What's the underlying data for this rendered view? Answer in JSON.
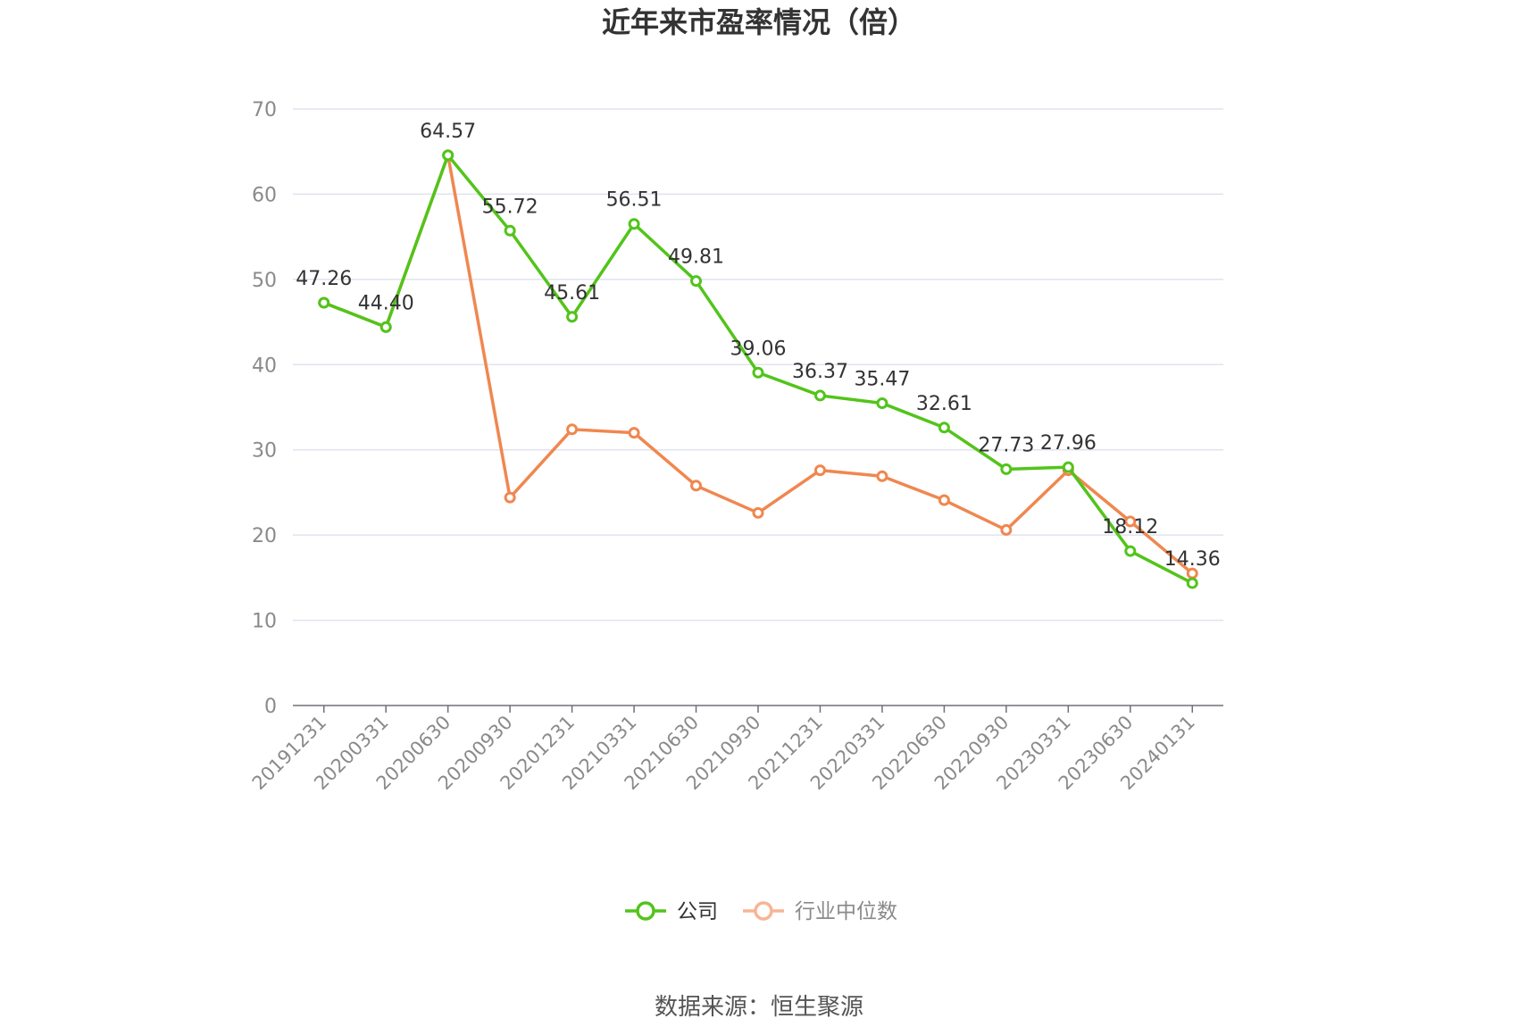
{
  "chart_data": {
    "type": "line",
    "title": "近年来市盈率情况（倍）",
    "categories": [
      "20191231",
      "20200331",
      "20200630",
      "20200930",
      "20201231",
      "20210331",
      "20210630",
      "20210930",
      "20211231",
      "20220331",
      "20220630",
      "20220930",
      "20230331",
      "20230630",
      "20240131"
    ],
    "ylim": [
      0,
      70
    ],
    "yticks": [
      0,
      10,
      20,
      30,
      40,
      50,
      60,
      70
    ],
    "grid": true,
    "legend_position": "bottom",
    "series": [
      {
        "name": "公司",
        "color": "#52c41a",
        "values": [
          47.26,
          44.4,
          64.57,
          55.72,
          45.61,
          56.51,
          49.81,
          39.06,
          36.37,
          35.47,
          32.61,
          27.73,
          27.96,
          18.12,
          14.36
        ],
        "labels": [
          "47.26",
          "44.40",
          "64.57",
          "55.72",
          "45.61",
          "56.51",
          "49.81",
          "39.06",
          "36.37",
          "35.47",
          "32.61",
          "27.73",
          "27.96",
          "18.12",
          "14.36"
        ]
      },
      {
        "name": "行业中位数",
        "color": "#f0874f",
        "values": [
          47.26,
          44.4,
          64.57,
          24.4,
          32.4,
          32.0,
          25.8,
          22.6,
          27.6,
          26.9,
          24.1,
          20.6,
          27.6,
          21.6,
          15.5
        ]
      }
    ]
  },
  "source": "数据来源：恒生聚源"
}
